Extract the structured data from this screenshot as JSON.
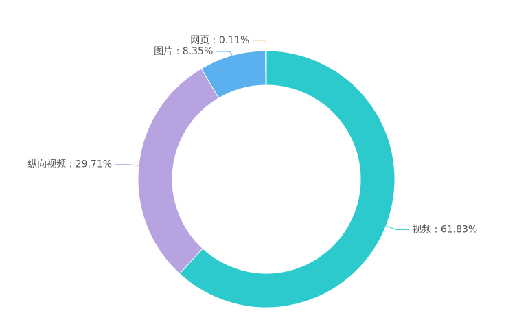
{
  "chart_data": {
    "type": "pie",
    "categories": [
      "视频",
      "纵向视频",
      "图片",
      "网页"
    ],
    "values": [
      61.83,
      29.71,
      8.35,
      0.11
    ],
    "value_labels": [
      "视频 : 61.83%",
      "纵向视频 : 29.71%",
      "图片 : 8.35%",
      "网页 : 0.11%"
    ],
    "colors": [
      "#2ccacd",
      "#b7a3e0",
      "#5bb1ef",
      "#f9c78b"
    ],
    "donut": true
  }
}
